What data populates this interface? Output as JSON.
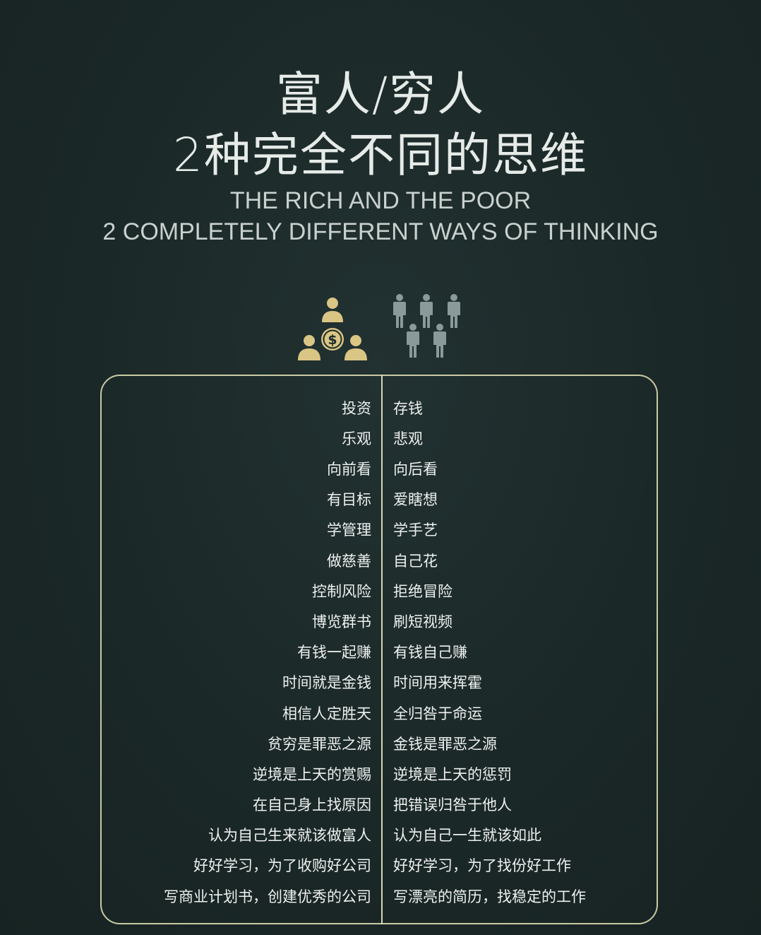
{
  "title": {
    "line1": "富人/穷人",
    "line2": "2种完全不同的思维"
  },
  "subtitle": {
    "line1": "THE RICH AND THE POOR",
    "line2": "2 COMPLETELY DIFFERENT WAYS OF THINKING"
  },
  "icons": {
    "rich": "rich-people-with-dollar-icon",
    "poor": "crowd-of-people-icon"
  },
  "colors": {
    "background": "#1c2a2a",
    "rich_icon": "#d9c584",
    "poor_icon": "#8a9a9a",
    "panel_border": "#c9c9a4",
    "text": "#eef1ef"
  },
  "comparison": {
    "rows": [
      {
        "rich": "投资",
        "poor": "存钱"
      },
      {
        "rich": "乐观",
        "poor": "悲观"
      },
      {
        "rich": "向前看",
        "poor": "向后看"
      },
      {
        "rich": "有目标",
        "poor": "爱瞎想"
      },
      {
        "rich": "学管理",
        "poor": "学手艺"
      },
      {
        "rich": "做慈善",
        "poor": "自己花"
      },
      {
        "rich": "控制风险",
        "poor": "拒绝冒险"
      },
      {
        "rich": "博览群书",
        "poor": "刷短视频"
      },
      {
        "rich": "有钱一起赚",
        "poor": "有钱自己赚"
      },
      {
        "rich": "时间就是金钱",
        "poor": "时间用来挥霍"
      },
      {
        "rich": "相信人定胜天",
        "poor": "全归咎于命运"
      },
      {
        "rich": "贫穷是罪恶之源",
        "poor": "金钱是罪恶之源"
      },
      {
        "rich": "逆境是上天的赏赐",
        "poor": "逆境是上天的惩罚"
      },
      {
        "rich": "在自己身上找原因",
        "poor": "把错误归咎于他人"
      },
      {
        "rich": "认为自己生来就该做富人",
        "poor": "认为自己一生就该如此"
      },
      {
        "rich": "好好学习，为了收购好公司",
        "poor": "好好学习，为了找份好工作"
      },
      {
        "rich": "写商业计划书，创建优秀的公司",
        "poor": "写漂亮的简历，找稳定的工作"
      }
    ]
  }
}
